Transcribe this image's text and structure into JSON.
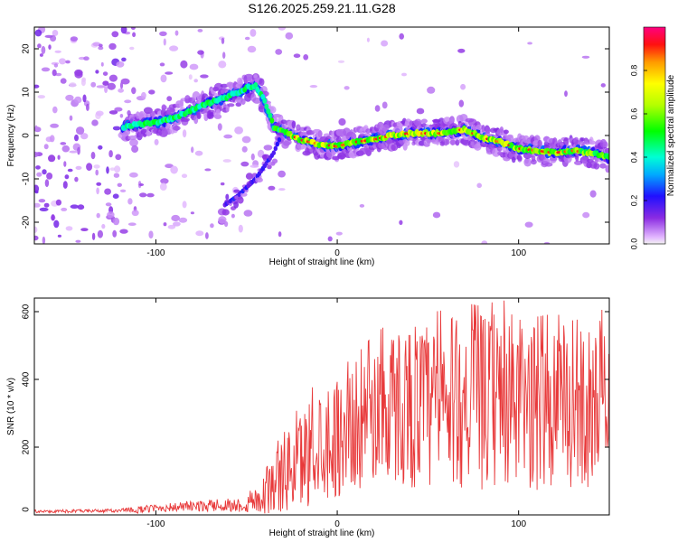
{
  "title": "S126.2025.259.21.11.G28",
  "chart_data": [
    {
      "type": "heatmap",
      "name": "spectrogram",
      "xlabel": "Height of straight line (km)",
      "ylabel": "Frequency (Hz)",
      "xlim": [
        -167,
        150
      ],
      "ylim": [
        -25,
        25
      ],
      "xticks": [
        "-100",
        "0",
        "100"
      ],
      "xtick_values": [
        -100,
        0,
        100
      ],
      "yticks": [
        "20",
        "10",
        "0",
        "-10",
        "-20"
      ],
      "ytick_values": [
        20,
        10,
        0,
        -10,
        -20
      ],
      "colorbar": {
        "label": "Normalized spectral amplitude",
        "range": [
          0,
          1
        ],
        "ticks": [
          "0.0",
          "0.2",
          "0.4",
          "0.6",
          "0.8"
        ],
        "tick_values": [
          0.0,
          0.2,
          0.4,
          0.6,
          0.8
        ]
      },
      "ridge": {
        "x": [
          -118,
          -110,
          -100,
          -90,
          -80,
          -70,
          -60,
          -50,
          -45,
          -40,
          -35,
          -30,
          -25,
          -20,
          -10,
          0,
          10,
          20,
          30,
          40,
          50,
          60,
          70,
          80,
          90,
          100,
          110,
          120,
          130,
          140,
          150
        ],
        "freq": [
          2,
          2.5,
          3,
          4,
          6,
          7.5,
          9,
          11,
          11.5,
          8,
          2,
          1,
          0,
          -1,
          -2,
          -2.5,
          -1.5,
          -1,
          0,
          0.5,
          0.5,
          0.5,
          1.5,
          -0.5,
          -1.5,
          -3,
          -3.5,
          -4,
          -3.5,
          -4,
          -5
        ],
        "strength": [
          0.35,
          0.45,
          0.5,
          0.5,
          0.45,
          0.45,
          0.45,
          0.45,
          0.4,
          0.45,
          0.55,
          0.6,
          0.75,
          0.85,
          0.85,
          0.8,
          0.85,
          0.85,
          0.9,
          0.9,
          0.9,
          0.85,
          0.85,
          0.85,
          0.85,
          0.75,
          0.7,
          0.75,
          0.7,
          0.7,
          0.65
        ]
      },
      "mirror_branch": {
        "x": [
          -62,
          -55,
          -50,
          -45,
          -40,
          -35,
          -32
        ],
        "freq": [
          -16,
          -14,
          -12,
          -10,
          -7,
          -4,
          -1
        ]
      }
    },
    {
      "type": "line",
      "name": "snr",
      "xlabel": "Height of straight line (km)",
      "ylabel": "SNR (10 * v/v)",
      "xlim": [
        -167,
        150
      ],
      "ylim": [
        0,
        640
      ],
      "xticks": [
        "-100",
        "0",
        "100"
      ],
      "xtick_values": [
        -100,
        0,
        100
      ],
      "yticks": [
        "0",
        "200",
        "400",
        "600"
      ],
      "ytick_values": [
        0,
        200,
        400,
        600
      ],
      "color": "#e8393a",
      "envelope": {
        "x": [
          -167,
          -120,
          -110,
          -100,
          -80,
          -60,
          -50,
          -40,
          -30,
          -20,
          -10,
          0,
          10,
          20,
          30,
          40,
          50,
          60,
          70,
          80,
          90,
          100,
          110,
          120,
          130,
          140,
          150
        ],
        "mean": [
          10,
          12,
          15,
          20,
          25,
          28,
          30,
          60,
          120,
          160,
          220,
          230,
          260,
          300,
          320,
          330,
          310,
          320,
          340,
          330,
          340,
          330,
          310,
          320,
          310,
          320,
          400
        ],
        "amplitude": [
          4,
          5,
          10,
          12,
          15,
          18,
          25,
          60,
          120,
          150,
          170,
          180,
          190,
          210,
          230,
          250,
          260,
          260,
          260,
          260,
          270,
          260,
          250,
          250,
          240,
          240,
          200
        ]
      }
    }
  ]
}
